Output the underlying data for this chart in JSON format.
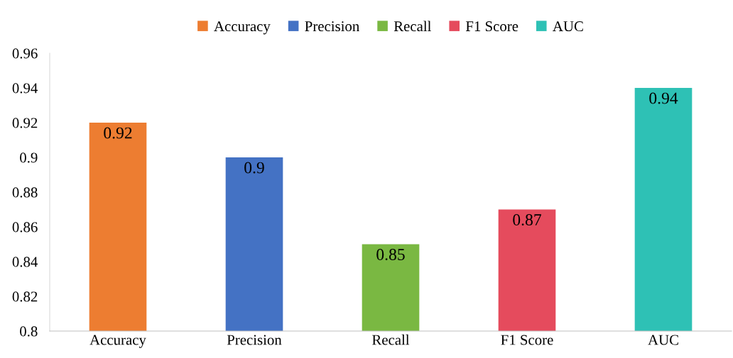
{
  "chart_data": {
    "type": "bar",
    "categories": [
      "Accuracy",
      "Precision",
      "Recall",
      "F1 Score",
      "AUC"
    ],
    "series": [
      {
        "name": "Accuracy",
        "color": "#ed7d31",
        "values": [
          0.92,
          null,
          null,
          null,
          null
        ]
      },
      {
        "name": "Precision",
        "color": "#4472c4",
        "values": [
          null,
          0.9,
          null,
          null,
          null
        ]
      },
      {
        "name": "Recall",
        "color": "#7ab842",
        "values": [
          null,
          null,
          0.85,
          null,
          null
        ]
      },
      {
        "name": "F1 Score",
        "color": "#e54b5d",
        "values": [
          null,
          null,
          null,
          0.87,
          null
        ]
      },
      {
        "name": "AUC",
        "color": "#2ec1b5",
        "values": [
          null,
          null,
          null,
          null,
          0.94
        ]
      }
    ],
    "ylim": [
      0.8,
      0.96
    ],
    "yticks": [
      0.8,
      0.82,
      0.84,
      0.86,
      0.88,
      0.9,
      0.92,
      0.94,
      0.96
    ],
    "data_labels": true,
    "legend": "top"
  }
}
